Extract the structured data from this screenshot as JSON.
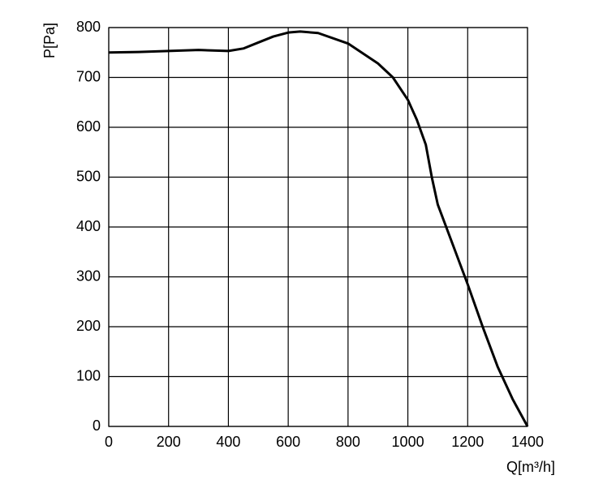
{
  "chart_data": {
    "type": "line",
    "x_label": "Q[m³/h]",
    "y_label": "P[Pa]",
    "series": [
      {
        "name": "P",
        "color": "#000000",
        "x": [
          0,
          100,
          200,
          300,
          400,
          450,
          500,
          550,
          600,
          640,
          700,
          800,
          900,
          950,
          1000,
          1030,
          1060,
          1080,
          1100,
          1150,
          1200,
          1250,
          1300,
          1350,
          1400
        ],
        "values": [
          750,
          751,
          753,
          755,
          753,
          758,
          770,
          782,
          790,
          792,
          789,
          768,
          728,
          700,
          655,
          615,
          565,
          500,
          445,
          365,
          285,
          200,
          120,
          55,
          0
        ]
      }
    ],
    "xlim": [
      0,
      1400
    ],
    "xticks": [
      0,
      200,
      400,
      600,
      800,
      1000,
      1200,
      1400
    ],
    "ylim": [
      0,
      800
    ],
    "yticks": [
      0,
      100,
      200,
      300,
      400,
      500,
      600,
      700,
      800
    ],
    "grid": true
  }
}
